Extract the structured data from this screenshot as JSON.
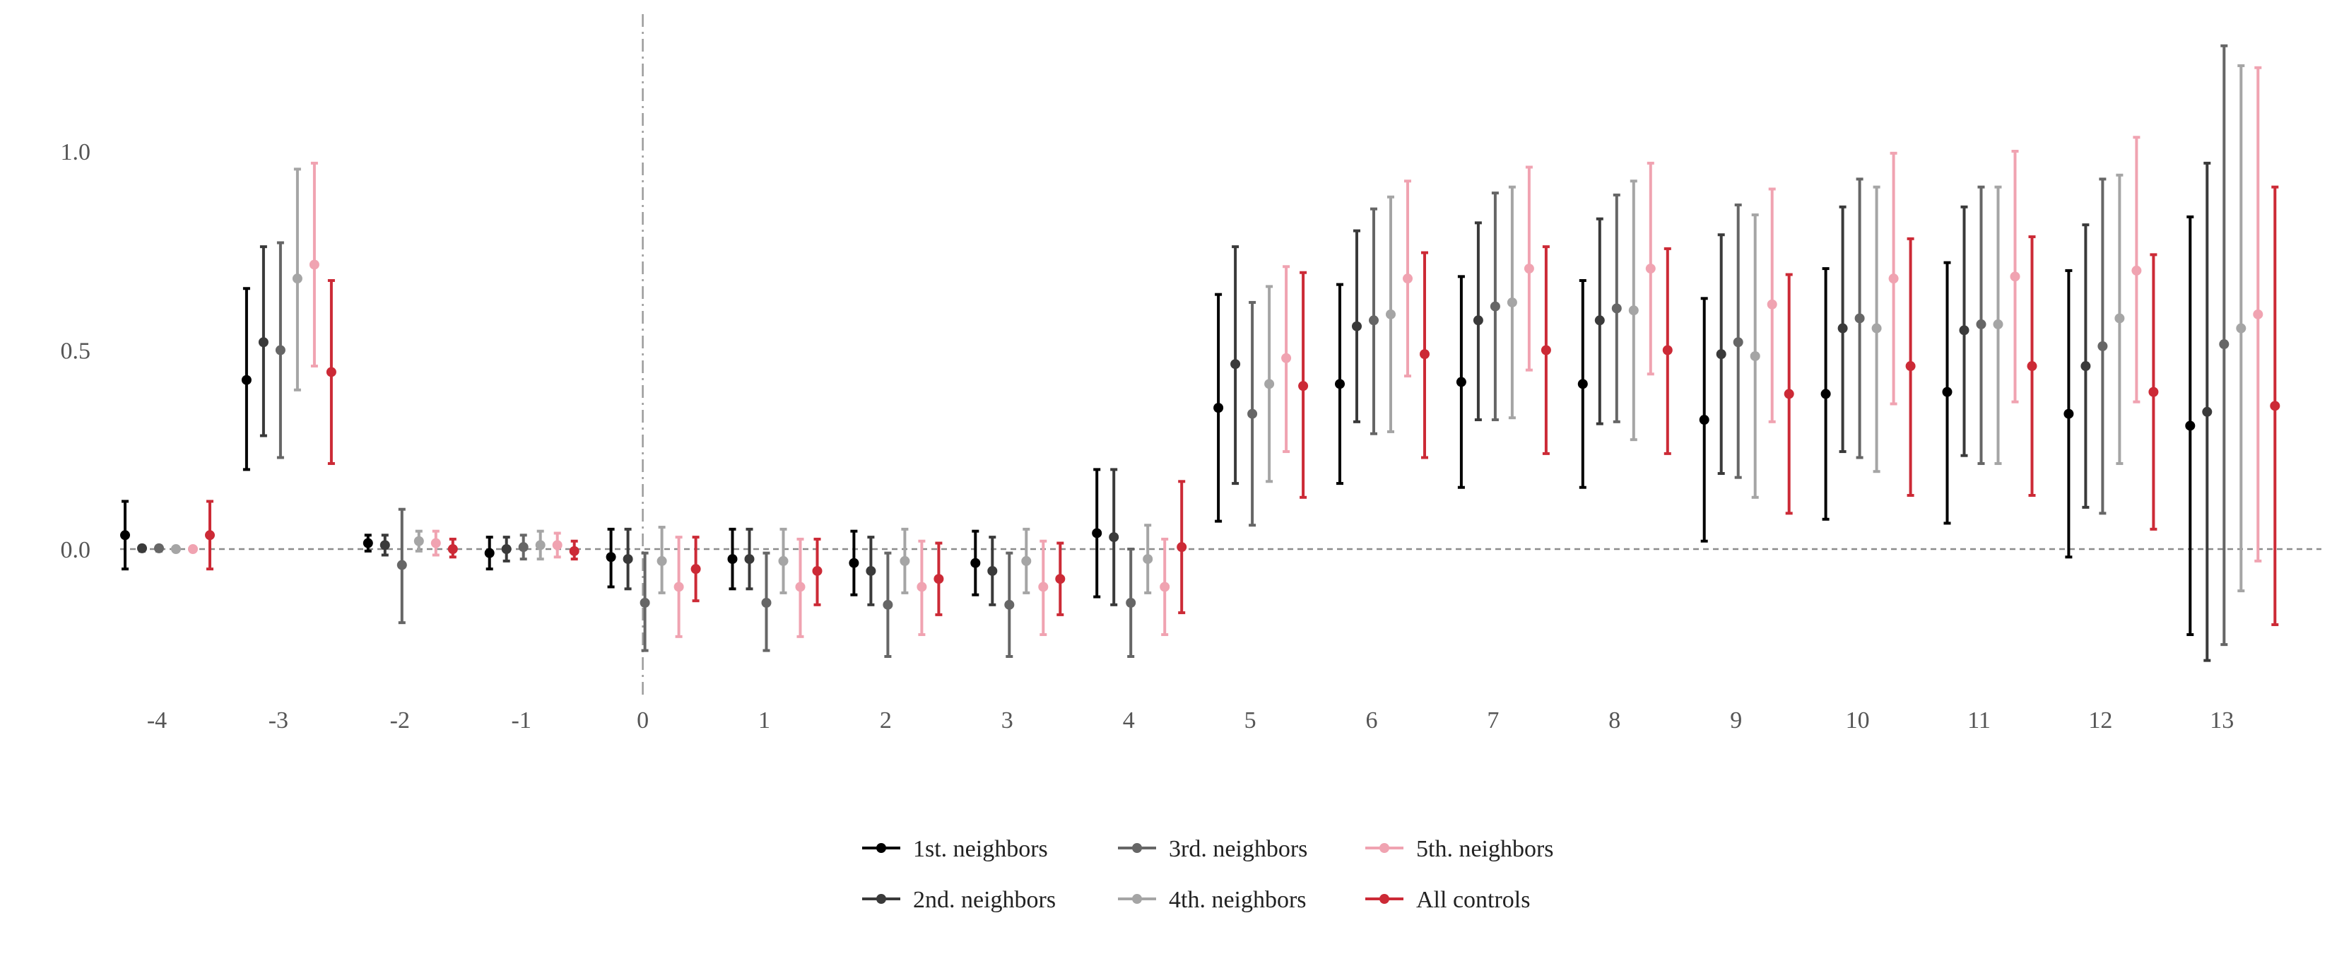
{
  "chart_data": {
    "type": "errorbar",
    "x_ticks": [
      "-4",
      "-3",
      "-2",
      "-1",
      "0",
      "1",
      "2",
      "3",
      "4",
      "5",
      "6",
      "7",
      "8",
      "9",
      "10",
      "11",
      "12",
      "13"
    ],
    "y_ticks": [
      "0.0",
      "0.5",
      "1.0"
    ],
    "ylim": [
      -0.4,
      1.3
    ],
    "title": "",
    "xlabel": "",
    "ylabel": "",
    "grid": false,
    "zero_line": "dashed",
    "event_line_at": "0",
    "legend_position": "bottom",
    "series": [
      {
        "name": "1st. neighbors",
        "color": "#000000",
        "points": [
          {
            "x": "-4",
            "est": 0.035,
            "lo": -0.05,
            "hi": 0.12
          },
          {
            "x": "-3",
            "est": 0.425,
            "lo": 0.2,
            "hi": 0.655
          },
          {
            "x": "-2",
            "est": 0.015,
            "lo": -0.005,
            "hi": 0.035
          },
          {
            "x": "-1",
            "est": -0.01,
            "lo": -0.05,
            "hi": 0.03
          },
          {
            "x": "0",
            "est": -0.02,
            "lo": -0.095,
            "hi": 0.05
          },
          {
            "x": "1",
            "est": -0.025,
            "lo": -0.1,
            "hi": 0.05
          },
          {
            "x": "2",
            "est": -0.035,
            "lo": -0.115,
            "hi": 0.045
          },
          {
            "x": "3",
            "est": -0.035,
            "lo": -0.115,
            "hi": 0.045
          },
          {
            "x": "4",
            "est": 0.04,
            "lo": -0.12,
            "hi": 0.2
          },
          {
            "x": "5",
            "est": 0.355,
            "lo": 0.07,
            "hi": 0.64
          },
          {
            "x": "6",
            "est": 0.415,
            "lo": 0.165,
            "hi": 0.665
          },
          {
            "x": "7",
            "est": 0.42,
            "lo": 0.155,
            "hi": 0.685
          },
          {
            "x": "8",
            "est": 0.415,
            "lo": 0.155,
            "hi": 0.675
          },
          {
            "x": "9",
            "est": 0.325,
            "lo": 0.02,
            "hi": 0.63
          },
          {
            "x": "10",
            "est": 0.39,
            "lo": 0.075,
            "hi": 0.705
          },
          {
            "x": "11",
            "est": 0.395,
            "lo": 0.065,
            "hi": 0.72
          },
          {
            "x": "12",
            "est": 0.34,
            "lo": -0.02,
            "hi": 0.7
          },
          {
            "x": "13",
            "est": 0.31,
            "lo": -0.215,
            "hi": 0.835
          }
        ]
      },
      {
        "name": "2nd. neighbors",
        "color": "#3a3a3a",
        "points": [
          {
            "x": "-4",
            "est": 0.002,
            "lo": -0.005,
            "hi": 0.008
          },
          {
            "x": "-3",
            "est": 0.52,
            "lo": 0.285,
            "hi": 0.76
          },
          {
            "x": "-2",
            "est": 0.01,
            "lo": -0.015,
            "hi": 0.035
          },
          {
            "x": "-1",
            "est": 0.0,
            "lo": -0.03,
            "hi": 0.03
          },
          {
            "x": "0",
            "est": -0.025,
            "lo": -0.1,
            "hi": 0.05
          },
          {
            "x": "1",
            "est": -0.025,
            "lo": -0.1,
            "hi": 0.05
          },
          {
            "x": "2",
            "est": -0.055,
            "lo": -0.14,
            "hi": 0.03
          },
          {
            "x": "3",
            "est": -0.055,
            "lo": -0.14,
            "hi": 0.03
          },
          {
            "x": "4",
            "est": 0.03,
            "lo": -0.14,
            "hi": 0.2
          },
          {
            "x": "5",
            "est": 0.465,
            "lo": 0.165,
            "hi": 0.76
          },
          {
            "x": "6",
            "est": 0.56,
            "lo": 0.32,
            "hi": 0.8
          },
          {
            "x": "7",
            "est": 0.575,
            "lo": 0.325,
            "hi": 0.82
          },
          {
            "x": "8",
            "est": 0.575,
            "lo": 0.315,
            "hi": 0.83
          },
          {
            "x": "9",
            "est": 0.49,
            "lo": 0.19,
            "hi": 0.79
          },
          {
            "x": "10",
            "est": 0.555,
            "lo": 0.245,
            "hi": 0.86
          },
          {
            "x": "11",
            "est": 0.55,
            "lo": 0.235,
            "hi": 0.86
          },
          {
            "x": "12",
            "est": 0.46,
            "lo": 0.105,
            "hi": 0.815
          },
          {
            "x": "13",
            "est": 0.345,
            "lo": -0.28,
            "hi": 0.97
          }
        ]
      },
      {
        "name": "3rd. neighbors",
        "color": "#666666",
        "points": [
          {
            "x": "-4",
            "est": 0.002,
            "lo": -0.005,
            "hi": 0.008
          },
          {
            "x": "-3",
            "est": 0.5,
            "lo": 0.23,
            "hi": 0.77
          },
          {
            "x": "-2",
            "est": -0.04,
            "lo": -0.185,
            "hi": 0.1
          },
          {
            "x": "-1",
            "est": 0.005,
            "lo": -0.025,
            "hi": 0.035
          },
          {
            "x": "0",
            "est": -0.135,
            "lo": -0.255,
            "hi": -0.01
          },
          {
            "x": "1",
            "est": -0.135,
            "lo": -0.255,
            "hi": -0.01
          },
          {
            "x": "2",
            "est": -0.14,
            "lo": -0.27,
            "hi": -0.01
          },
          {
            "x": "3",
            "est": -0.14,
            "lo": -0.27,
            "hi": -0.01
          },
          {
            "x": "4",
            "est": -0.135,
            "lo": -0.27,
            "hi": 0.0
          },
          {
            "x": "5",
            "est": 0.34,
            "lo": 0.06,
            "hi": 0.62
          },
          {
            "x": "6",
            "est": 0.575,
            "lo": 0.29,
            "hi": 0.855
          },
          {
            "x": "7",
            "est": 0.61,
            "lo": 0.325,
            "hi": 0.895
          },
          {
            "x": "8",
            "est": 0.605,
            "lo": 0.32,
            "hi": 0.89
          },
          {
            "x": "9",
            "est": 0.52,
            "lo": 0.18,
            "hi": 0.865
          },
          {
            "x": "10",
            "est": 0.58,
            "lo": 0.23,
            "hi": 0.93
          },
          {
            "x": "11",
            "est": 0.565,
            "lo": 0.215,
            "hi": 0.91
          },
          {
            "x": "12",
            "est": 0.51,
            "lo": 0.09,
            "hi": 0.93
          },
          {
            "x": "13",
            "est": 0.515,
            "lo": -0.24,
            "hi": 1.265
          }
        ]
      },
      {
        "name": "4th. neighbors",
        "color": "#a5a5a5",
        "points": [
          {
            "x": "-4",
            "est": 0.0,
            "lo": -0.005,
            "hi": 0.005
          },
          {
            "x": "-3",
            "est": 0.68,
            "lo": 0.4,
            "hi": 0.955
          },
          {
            "x": "-2",
            "est": 0.02,
            "lo": -0.005,
            "hi": 0.045
          },
          {
            "x": "-1",
            "est": 0.01,
            "lo": -0.025,
            "hi": 0.045
          },
          {
            "x": "0",
            "est": -0.03,
            "lo": -0.11,
            "hi": 0.055
          },
          {
            "x": "1",
            "est": -0.03,
            "lo": -0.11,
            "hi": 0.05
          },
          {
            "x": "2",
            "est": -0.03,
            "lo": -0.11,
            "hi": 0.05
          },
          {
            "x": "3",
            "est": -0.03,
            "lo": -0.11,
            "hi": 0.05
          },
          {
            "x": "4",
            "est": -0.025,
            "lo": -0.11,
            "hi": 0.06
          },
          {
            "x": "5",
            "est": 0.415,
            "lo": 0.17,
            "hi": 0.66
          },
          {
            "x": "6",
            "est": 0.59,
            "lo": 0.295,
            "hi": 0.885
          },
          {
            "x": "7",
            "est": 0.62,
            "lo": 0.33,
            "hi": 0.91
          },
          {
            "x": "8",
            "est": 0.6,
            "lo": 0.275,
            "hi": 0.925
          },
          {
            "x": "9",
            "est": 0.485,
            "lo": 0.13,
            "hi": 0.84
          },
          {
            "x": "10",
            "est": 0.555,
            "lo": 0.195,
            "hi": 0.91
          },
          {
            "x": "11",
            "est": 0.565,
            "lo": 0.215,
            "hi": 0.91
          },
          {
            "x": "12",
            "est": 0.58,
            "lo": 0.215,
            "hi": 0.94
          },
          {
            "x": "13",
            "est": 0.555,
            "lo": -0.105,
            "hi": 1.215
          }
        ]
      },
      {
        "name": "5th. neighbors",
        "color": "#f0a3b1",
        "points": [
          {
            "x": "-4",
            "est": 0.0,
            "lo": -0.005,
            "hi": 0.005
          },
          {
            "x": "-3",
            "est": 0.715,
            "lo": 0.46,
            "hi": 0.97
          },
          {
            "x": "-2",
            "est": 0.015,
            "lo": -0.015,
            "hi": 0.045
          },
          {
            "x": "-1",
            "est": 0.01,
            "lo": -0.02,
            "hi": 0.04
          },
          {
            "x": "0",
            "est": -0.095,
            "lo": -0.22,
            "hi": 0.03
          },
          {
            "x": "1",
            "est": -0.095,
            "lo": -0.22,
            "hi": 0.025
          },
          {
            "x": "2",
            "est": -0.095,
            "lo": -0.215,
            "hi": 0.02
          },
          {
            "x": "3",
            "est": -0.095,
            "lo": -0.215,
            "hi": 0.02
          },
          {
            "x": "4",
            "est": -0.095,
            "lo": -0.215,
            "hi": 0.025
          },
          {
            "x": "5",
            "est": 0.48,
            "lo": 0.245,
            "hi": 0.71
          },
          {
            "x": "6",
            "est": 0.68,
            "lo": 0.435,
            "hi": 0.925
          },
          {
            "x": "7",
            "est": 0.705,
            "lo": 0.45,
            "hi": 0.96
          },
          {
            "x": "8",
            "est": 0.705,
            "lo": 0.44,
            "hi": 0.97
          },
          {
            "x": "9",
            "est": 0.615,
            "lo": 0.32,
            "hi": 0.905
          },
          {
            "x": "10",
            "est": 0.68,
            "lo": 0.365,
            "hi": 0.995
          },
          {
            "x": "11",
            "est": 0.685,
            "lo": 0.37,
            "hi": 1.0
          },
          {
            "x": "12",
            "est": 0.7,
            "lo": 0.37,
            "hi": 1.035
          },
          {
            "x": "13",
            "est": 0.59,
            "lo": -0.03,
            "hi": 1.21
          }
        ]
      },
      {
        "name": "All controls",
        "color": "#cc2a36",
        "points": [
          {
            "x": "-4",
            "est": 0.035,
            "lo": -0.05,
            "hi": 0.12
          },
          {
            "x": "-3",
            "est": 0.445,
            "lo": 0.215,
            "hi": 0.675
          },
          {
            "x": "-2",
            "est": 0.0,
            "lo": -0.02,
            "hi": 0.025
          },
          {
            "x": "-1",
            "est": -0.005,
            "lo": -0.025,
            "hi": 0.02
          },
          {
            "x": "0",
            "est": -0.05,
            "lo": -0.13,
            "hi": 0.03
          },
          {
            "x": "1",
            "est": -0.055,
            "lo": -0.14,
            "hi": 0.025
          },
          {
            "x": "2",
            "est": -0.075,
            "lo": -0.165,
            "hi": 0.015
          },
          {
            "x": "3",
            "est": -0.075,
            "lo": -0.165,
            "hi": 0.015
          },
          {
            "x": "4",
            "est": 0.005,
            "lo": -0.16,
            "hi": 0.17
          },
          {
            "x": "5",
            "est": 0.41,
            "lo": 0.13,
            "hi": 0.695
          },
          {
            "x": "6",
            "est": 0.49,
            "lo": 0.23,
            "hi": 0.745
          },
          {
            "x": "7",
            "est": 0.5,
            "lo": 0.24,
            "hi": 0.76
          },
          {
            "x": "8",
            "est": 0.5,
            "lo": 0.24,
            "hi": 0.755
          },
          {
            "x": "9",
            "est": 0.39,
            "lo": 0.09,
            "hi": 0.69
          },
          {
            "x": "10",
            "est": 0.46,
            "lo": 0.135,
            "hi": 0.78
          },
          {
            "x": "11",
            "est": 0.46,
            "lo": 0.135,
            "hi": 0.785
          },
          {
            "x": "12",
            "est": 0.395,
            "lo": 0.05,
            "hi": 0.74
          },
          {
            "x": "13",
            "est": 0.36,
            "lo": -0.19,
            "hi": 0.91
          }
        ]
      }
    ]
  }
}
